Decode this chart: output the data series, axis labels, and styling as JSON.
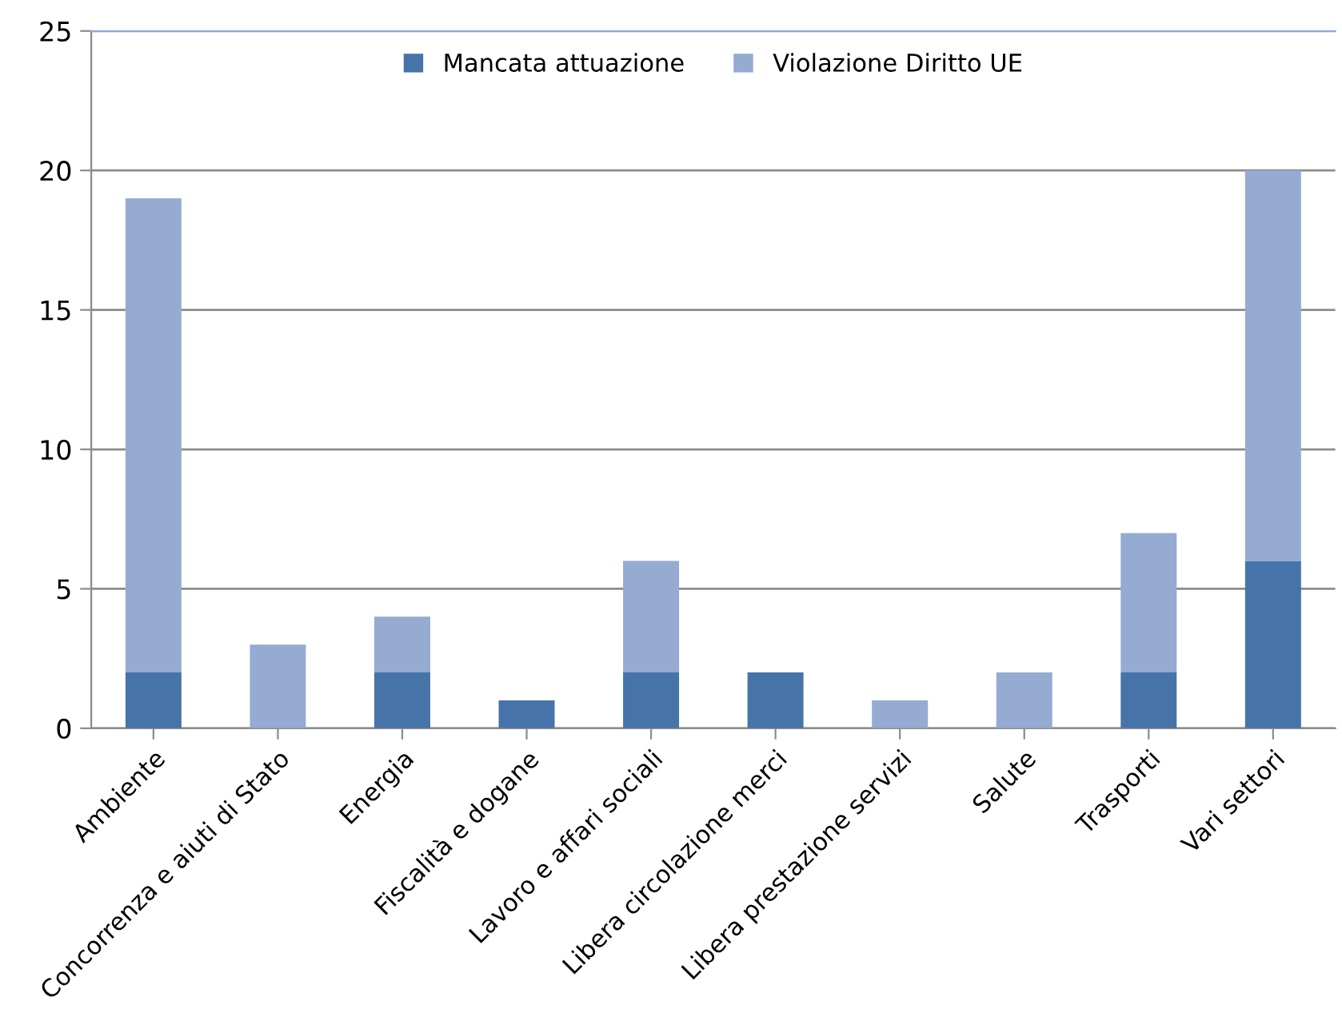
{
  "chart_data": {
    "type": "bar",
    "stacked": true,
    "categories": [
      "Ambiente",
      "Concorrenza e aiuti di Stato",
      "Energia",
      "Fiscalità e dogane",
      "Lavoro e affari sociali",
      "Libera circolazione merci",
      "Libera prestazione servizi",
      "Salute",
      "Trasporti",
      "Vari settori"
    ],
    "series": [
      {
        "name": "Mancata attuazione",
        "color": "#4674a8",
        "values": [
          2,
          0,
          2,
          1,
          2,
          2,
          0,
          0,
          2,
          6
        ]
      },
      {
        "name": "Violazione Diritto UE",
        "color": "#95abd2",
        "values": [
          17,
          3,
          2,
          0,
          4,
          0,
          1,
          2,
          5,
          14
        ]
      }
    ],
    "ylim": [
      0,
      25
    ],
    "yticks": [
      0,
      5,
      10,
      15,
      20,
      25
    ],
    "grid": "y",
    "legend": "top"
  }
}
